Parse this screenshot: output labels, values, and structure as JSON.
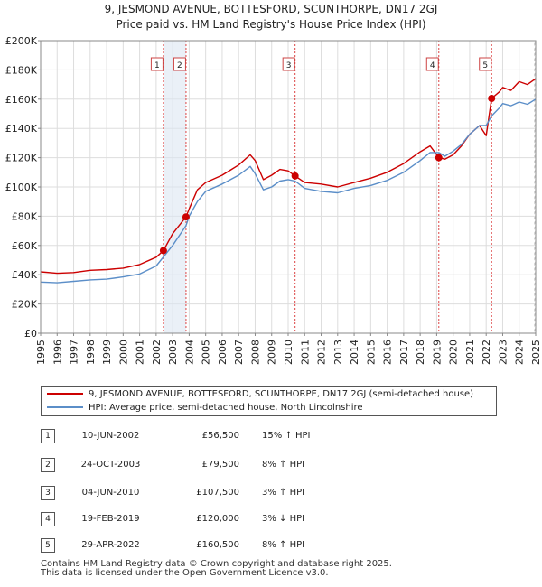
{
  "title_line1": "9, JESMOND AVENUE, BOTTESFORD, SCUNTHORPE, DN17 2GJ",
  "title_line2": "Price paid vs. HM Land Registry's House Price Index (HPI)",
  "legend": {
    "property": "9, JESMOND AVENUE, BOTTESFORD, SCUNTHORPE, DN17 2GJ (semi-detached house)",
    "hpi": "HPI: Average price, semi-detached house, North Lincolnshire"
  },
  "colors": {
    "property": "#cc0000",
    "hpi": "#5b8ec8",
    "marker": "#cc0000",
    "vline": "#dd4444",
    "shade": "#dce6f2",
    "grid": "#dddddd"
  },
  "sales": [
    {
      "num": "1",
      "date": "10-JUN-2002",
      "price": "£56,500",
      "delta": "15% ↑ HPI"
    },
    {
      "num": "2",
      "date": "24-OCT-2003",
      "price": "£79,500",
      "delta": "8% ↑ HPI"
    },
    {
      "num": "3",
      "date": "04-JUN-2010",
      "price": "£107,500",
      "delta": "3% ↑ HPI"
    },
    {
      "num": "4",
      "date": "19-FEB-2019",
      "price": "£120,000",
      "delta": "3% ↓ HPI"
    },
    {
      "num": "5",
      "date": "29-APR-2022",
      "price": "£160,500",
      "delta": "8% ↑ HPI"
    }
  ],
  "footer": {
    "line1": "Contains HM Land Registry data © Crown copyright and database right 2025.",
    "line2": "This data is licensed under the Open Government Licence v3.0."
  },
  "chart_data": {
    "type": "line",
    "xlim": [
      1995,
      2025
    ],
    "ylim": [
      0,
      200000
    ],
    "x_ticks": [
      1995,
      1996,
      1997,
      1998,
      1999,
      2000,
      2001,
      2002,
      2003,
      2004,
      2005,
      2006,
      2007,
      2008,
      2009,
      2010,
      2011,
      2012,
      2013,
      2014,
      2015,
      2016,
      2017,
      2018,
      2019,
      2020,
      2021,
      2022,
      2023,
      2024,
      2025
    ],
    "y_ticks": [
      0,
      20000,
      40000,
      60000,
      80000,
      100000,
      120000,
      140000,
      160000,
      180000,
      200000
    ],
    "y_tick_labels": [
      "£0",
      "£20K",
      "£40K",
      "£60K",
      "£80K",
      "£100K",
      "£120K",
      "£140K",
      "£160K",
      "£180K",
      "£200K"
    ],
    "grid": true,
    "legend_position": "below",
    "series": [
      {
        "name": "9, JESMOND AVENUE, BOTTESFORD, SCUNTHORPE, DN17 2GJ (semi-detached house)",
        "color": "#cc0000",
        "points": [
          [
            1995,
            42000
          ],
          [
            1996,
            41000
          ],
          [
            1997,
            41500
          ],
          [
            1998,
            43000
          ],
          [
            1999,
            43500
          ],
          [
            2000,
            44500
          ],
          [
            2001,
            47000
          ],
          [
            2002,
            52000
          ],
          [
            2002.44,
            56500
          ],
          [
            2003,
            68000
          ],
          [
            2003.81,
            79500
          ],
          [
            2004,
            85000
          ],
          [
            2004.5,
            98000
          ],
          [
            2005,
            103000
          ],
          [
            2006,
            108000
          ],
          [
            2007,
            115000
          ],
          [
            2007.7,
            122000
          ],
          [
            2008,
            118000
          ],
          [
            2008.5,
            105000
          ],
          [
            2009,
            108000
          ],
          [
            2009.5,
            112000
          ],
          [
            2010,
            111000
          ],
          [
            2010.42,
            107500
          ],
          [
            2011,
            103000
          ],
          [
            2012,
            102000
          ],
          [
            2013,
            100000
          ],
          [
            2014,
            103000
          ],
          [
            2015,
            106000
          ],
          [
            2016,
            110000
          ],
          [
            2017,
            116000
          ],
          [
            2018,
            124000
          ],
          [
            2018.6,
            128000
          ],
          [
            2019.13,
            120000
          ],
          [
            2019.5,
            119000
          ],
          [
            2020,
            122000
          ],
          [
            2020.5,
            128000
          ],
          [
            2021,
            136000
          ],
          [
            2021.6,
            142000
          ],
          [
            2022,
            135000
          ],
          [
            2022.33,
            160500
          ],
          [
            2022.8,
            165000
          ],
          [
            2023,
            168000
          ],
          [
            2023.5,
            166000
          ],
          [
            2024,
            172000
          ],
          [
            2024.5,
            170000
          ],
          [
            2025,
            174000
          ]
        ]
      },
      {
        "name": "HPI: Average price, semi-detached house, North Lincolnshire",
        "color": "#5b8ec8",
        "points": [
          [
            1995,
            35000
          ],
          [
            1996,
            34500
          ],
          [
            1997,
            35500
          ],
          [
            1998,
            36500
          ],
          [
            1999,
            37000
          ],
          [
            2000,
            38500
          ],
          [
            2001,
            40500
          ],
          [
            2002,
            46000
          ],
          [
            2003,
            60000
          ],
          [
            2003.81,
            73500
          ],
          [
            2004,
            80000
          ],
          [
            2004.5,
            90000
          ],
          [
            2005,
            97000
          ],
          [
            2006,
            102000
          ],
          [
            2007,
            108000
          ],
          [
            2007.7,
            114000
          ],
          [
            2008,
            109000
          ],
          [
            2008.5,
            98000
          ],
          [
            2009,
            100000
          ],
          [
            2009.5,
            104000
          ],
          [
            2010,
            105000
          ],
          [
            2010.42,
            104000
          ],
          [
            2011,
            99000
          ],
          [
            2012,
            97000
          ],
          [
            2013,
            96000
          ],
          [
            2014,
            99000
          ],
          [
            2015,
            101000
          ],
          [
            2016,
            104500
          ],
          [
            2017,
            110000
          ],
          [
            2018,
            118000
          ],
          [
            2018.6,
            123500
          ],
          [
            2019.13,
            123500
          ],
          [
            2019.5,
            121000
          ],
          [
            2020,
            124500
          ],
          [
            2020.5,
            129000
          ],
          [
            2021,
            136000
          ],
          [
            2021.6,
            142000
          ],
          [
            2022,
            142000
          ],
          [
            2022.33,
            148500
          ],
          [
            2022.8,
            154000
          ],
          [
            2023,
            157000
          ],
          [
            2023.5,
            155500
          ],
          [
            2024,
            158000
          ],
          [
            2024.5,
            156500
          ],
          [
            2025,
            160000
          ]
        ]
      }
    ],
    "sales_markers": [
      {
        "num": "1",
        "x": 2002.44,
        "y": 56500
      },
      {
        "num": "2",
        "x": 2003.81,
        "y": 79500
      },
      {
        "num": "3",
        "x": 2010.42,
        "y": 107500
      },
      {
        "num": "4",
        "x": 2019.13,
        "y": 120000
      },
      {
        "num": "5",
        "x": 2022.33,
        "y": 160500
      }
    ],
    "hatched_after": 2024.9
  }
}
